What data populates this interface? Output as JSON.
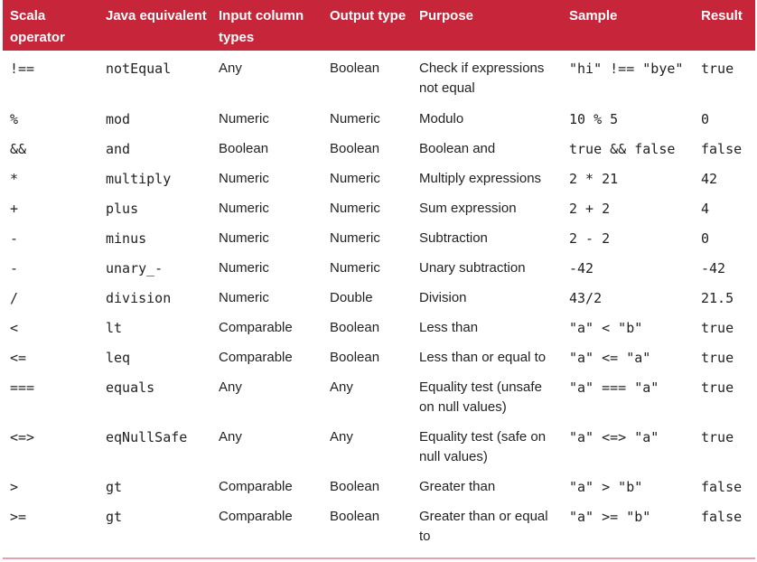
{
  "headers": [
    "Scala operator",
    "Java equivalent",
    "Input column types",
    "Output type",
    "Purpose",
    "Sample",
    "Result"
  ],
  "rows": [
    {
      "op": "!==",
      "java": "notEqual",
      "input": "Any",
      "output": "Boolean",
      "purpose": "Check if expressions not equal",
      "sample": "\"hi\" !== \"bye\"",
      "result": "true"
    },
    {
      "op": "%",
      "java": "mod",
      "input": "Numeric",
      "output": "Numeric",
      "purpose": "Modulo",
      "sample": "10 % 5",
      "result": "0"
    },
    {
      "op": "&&",
      "java": "and",
      "input": "Boolean",
      "output": "Boolean",
      "purpose": "Boolean and",
      "sample": "true && false",
      "result": "false"
    },
    {
      "op": "*",
      "java": "multiply",
      "input": "Numeric",
      "output": "Numeric",
      "purpose": "Multiply expressions",
      "sample": "2 * 21",
      "result": "42"
    },
    {
      "op": "+",
      "java": "plus",
      "input": "Numeric",
      "output": "Numeric",
      "purpose": "Sum expression",
      "sample": "2 + 2",
      "result": "4"
    },
    {
      "op": "-",
      "java": "minus",
      "input": "Numeric",
      "output": "Numeric",
      "purpose": "Subtraction",
      "sample": "2 - 2",
      "result": "0"
    },
    {
      "op": "-",
      "java": "unary_-",
      "input": "Numeric",
      "output": "Numeric",
      "purpose": "Unary subtraction",
      "sample": "-42",
      "result": "-42"
    },
    {
      "op": "/",
      "java": "division",
      "input": "Numeric",
      "output": "Double",
      "purpose": "Division",
      "sample": "43/2",
      "result": "21.5"
    },
    {
      "op": "<",
      "java": "lt",
      "input": "Comparable",
      "output": "Boolean",
      "purpose": "Less than",
      "sample": "\"a\" < \"b\"",
      "result": "true"
    },
    {
      "op": "<=",
      "java": "leq",
      "input": "Comparable",
      "output": "Boolean",
      "purpose": "Less than or equal to",
      "sample": "\"a\" <= \"a\"",
      "result": "true"
    },
    {
      "op": "===",
      "java": "equals",
      "input": "Any",
      "output": "Any",
      "purpose": "Equality test (unsafe on null values)",
      "sample": "\"a\" === \"a\"",
      "result": "true"
    },
    {
      "op": "<=>",
      "java": "eqNullSafe",
      "input": "Any",
      "output": "Any",
      "purpose": "Equality test (safe on null values)",
      "sample": "\"a\" <=> \"a\"",
      "result": "true"
    },
    {
      "op": ">",
      "java": "gt",
      "input": "Comparable",
      "output": "Boolean",
      "purpose": "Greater than",
      "sample": "\"a\" > \"b\"",
      "result": "false"
    },
    {
      "op": ">=",
      "java": "gt",
      "input": "Comparable",
      "output": "Boolean",
      "purpose": "Greater than or equal to",
      "sample": "\"a\" >= \"b\"",
      "result": "false"
    }
  ],
  "colors": {
    "header_bg": "#c6253a",
    "header_text": "#ffffff",
    "rule": "#e8a0aa"
  }
}
